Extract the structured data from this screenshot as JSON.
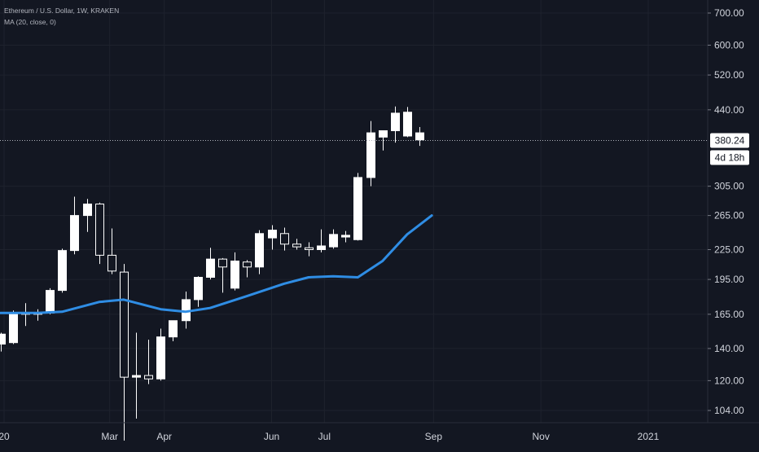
{
  "legend": {
    "symbol_line": "Ethereum / U.S. Dollar, 1W, KRAKEN",
    "indicator_line": "MA (20, close, 0)"
  },
  "colors": {
    "background": "#131722",
    "grid": "#1e222d",
    "axis_text": "#d1d4dc",
    "candle": "#ffffff",
    "ma_line": "#2f8de4",
    "price_label_bg": "#ffffff",
    "price_label_text": "#131722"
  },
  "chart_data": {
    "type": "candlestick",
    "y_scale": "log",
    "y_ticks": [
      104,
      120,
      140,
      165,
      195,
      225,
      265,
      305,
      440,
      520,
      600,
      700
    ],
    "y_tick_labels": [
      "104.00",
      "120.00",
      "140.00",
      "165.00",
      "195.00",
      "225.00",
      "265.00",
      "305.00",
      "440.00",
      "520.00",
      "600.00",
      "700.00"
    ],
    "x_tick_labels": [
      {
        "label": "20",
        "date": "2020-01-01"
      },
      {
        "label": "Mar",
        "date": "2020-03-01"
      },
      {
        "label": "Apr",
        "date": "2020-04-01"
      },
      {
        "label": "Jun",
        "date": "2020-06-01"
      },
      {
        "label": "Jul",
        "date": "2020-07-01"
      },
      {
        "label": "Sep",
        "date": "2020-09-01"
      },
      {
        "label": "Nov",
        "date": "2020-11-01"
      },
      {
        "label": "2021",
        "date": "2021-01-01"
      }
    ],
    "current_price": 380.24,
    "current_price_label": "380.24",
    "countdown_label": "4d 18h",
    "candles": [
      {
        "date": "2019-12-30",
        "open": 143,
        "high": 151,
        "low": 138,
        "close": 150
      },
      {
        "date": "2020-01-06",
        "open": 144,
        "high": 168,
        "low": 143,
        "close": 166
      },
      {
        "date": "2020-01-13",
        "open": 166,
        "high": 174,
        "low": 156,
        "close": 165
      },
      {
        "date": "2020-01-20",
        "open": 165,
        "high": 169,
        "low": 160,
        "close": 166
      },
      {
        "date": "2020-01-27",
        "open": 166,
        "high": 187,
        "low": 165,
        "close": 185
      },
      {
        "date": "2020-02-03",
        "open": 185,
        "high": 226,
        "low": 183,
        "close": 224
      },
      {
        "date": "2020-02-10",
        "open": 224,
        "high": 290,
        "low": 220,
        "close": 265
      },
      {
        "date": "2020-02-17",
        "open": 265,
        "high": 287,
        "low": 245,
        "close": 280
      },
      {
        "date": "2020-02-24",
        "open": 280,
        "high": 282,
        "low": 210,
        "close": 219
      },
      {
        "date": "2020-03-02",
        "open": 219,
        "high": 249,
        "low": 200,
        "close": 203
      },
      {
        "date": "2020-03-09",
        "open": 202,
        "high": 210,
        "low": 90,
        "close": 122
      },
      {
        "date": "2020-03-16",
        "open": 122,
        "high": 151,
        "low": 100,
        "close": 123
      },
      {
        "date": "2020-03-23",
        "open": 123,
        "high": 146,
        "low": 118,
        "close": 121
      },
      {
        "date": "2020-03-30",
        "open": 121,
        "high": 154,
        "low": 120,
        "close": 148
      },
      {
        "date": "2020-04-06",
        "open": 148,
        "high": 160,
        "low": 145,
        "close": 160
      },
      {
        "date": "2020-04-13",
        "open": 160,
        "high": 184,
        "low": 154,
        "close": 177
      },
      {
        "date": "2020-04-20",
        "open": 177,
        "high": 198,
        "low": 171,
        "close": 197
      },
      {
        "date": "2020-04-27",
        "open": 197,
        "high": 227,
        "low": 195,
        "close": 215
      },
      {
        "date": "2020-05-04",
        "open": 215,
        "high": 216,
        "low": 183,
        "close": 207
      },
      {
        "date": "2020-05-11",
        "open": 187,
        "high": 222,
        "low": 185,
        "close": 213
      },
      {
        "date": "2020-05-18",
        "open": 212,
        "high": 214,
        "low": 197,
        "close": 207
      },
      {
        "date": "2020-05-25",
        "open": 207,
        "high": 247,
        "low": 200,
        "close": 243
      },
      {
        "date": "2020-06-01",
        "open": 238,
        "high": 253,
        "low": 225,
        "close": 247
      },
      {
        "date": "2020-06-08",
        "open": 243,
        "high": 250,
        "low": 224,
        "close": 231
      },
      {
        "date": "2020-06-15",
        "open": 231,
        "high": 237,
        "low": 225,
        "close": 228
      },
      {
        "date": "2020-06-22",
        "open": 227,
        "high": 233,
        "low": 218,
        "close": 225
      },
      {
        "date": "2020-06-29",
        "open": 225,
        "high": 248,
        "low": 222,
        "close": 229
      },
      {
        "date": "2020-07-06",
        "open": 228,
        "high": 248,
        "low": 226,
        "close": 242
      },
      {
        "date": "2020-07-13",
        "open": 239,
        "high": 246,
        "low": 233,
        "close": 241
      },
      {
        "date": "2020-07-20",
        "open": 236,
        "high": 325,
        "low": 235,
        "close": 318
      },
      {
        "date": "2020-07-27",
        "open": 318,
        "high": 417,
        "low": 305,
        "close": 394
      },
      {
        "date": "2020-08-03",
        "open": 386,
        "high": 398,
        "low": 362,
        "close": 398
      },
      {
        "date": "2020-08-10",
        "open": 398,
        "high": 447,
        "low": 376,
        "close": 433
      },
      {
        "date": "2020-08-17",
        "open": 388,
        "high": 446,
        "low": 386,
        "close": 435
      },
      {
        "date": "2020-08-24",
        "open": 381,
        "high": 405,
        "low": 370,
        "close": 394
      }
    ],
    "ma": {
      "name": "MA (20, close, 0)",
      "points": [
        {
          "date": "2019-12-30",
          "value": 166
        },
        {
          "date": "2020-01-20",
          "value": 166
        },
        {
          "date": "2020-02-03",
          "value": 167
        },
        {
          "date": "2020-02-24",
          "value": 175
        },
        {
          "date": "2020-03-09",
          "value": 177
        },
        {
          "date": "2020-03-30",
          "value": 169
        },
        {
          "date": "2020-04-13",
          "value": 167
        },
        {
          "date": "2020-04-27",
          "value": 170
        },
        {
          "date": "2020-05-18",
          "value": 180
        },
        {
          "date": "2020-06-08",
          "value": 191
        },
        {
          "date": "2020-06-22",
          "value": 197
        },
        {
          "date": "2020-07-06",
          "value": 198
        },
        {
          "date": "2020-07-20",
          "value": 197
        },
        {
          "date": "2020-08-03",
          "value": 213
        },
        {
          "date": "2020-08-17",
          "value": 242
        },
        {
          "date": "2020-08-31",
          "value": 265
        }
      ]
    }
  }
}
